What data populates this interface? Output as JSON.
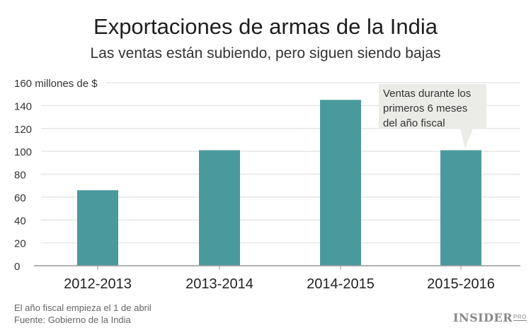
{
  "title": "Exportaciones de armas de la India",
  "subtitle": "Las ventas están subiendo, pero siguen siendo bajas",
  "footnotes": [
    "El año fiscal empieza el 1 de abril",
    "Fuente: Gobierno de la India"
  ],
  "logo": {
    "main": "INSIDER",
    "sup": "PRO"
  },
  "chart_data": {
    "type": "bar",
    "categories": [
      "2012-2013",
      "2013-2014",
      "2014-2015",
      "2015-2016"
    ],
    "values": [
      66,
      101,
      145,
      101
    ],
    "ylabel": "millones de $",
    "ylim": [
      0,
      160
    ],
    "yticks": [
      0,
      20,
      40,
      60,
      80,
      100,
      120,
      140,
      160
    ],
    "ytick_labels": [
      "0",
      "20",
      "40",
      "60",
      "80",
      "100",
      "120",
      "140",
      "160 millones de $"
    ],
    "grid": true,
    "bar_color": "#4a9a9d",
    "annotation": {
      "category": "2015-2016",
      "text": [
        "Ventas durante los",
        "primeros 6 meses",
        "del año fiscal"
      ]
    }
  }
}
